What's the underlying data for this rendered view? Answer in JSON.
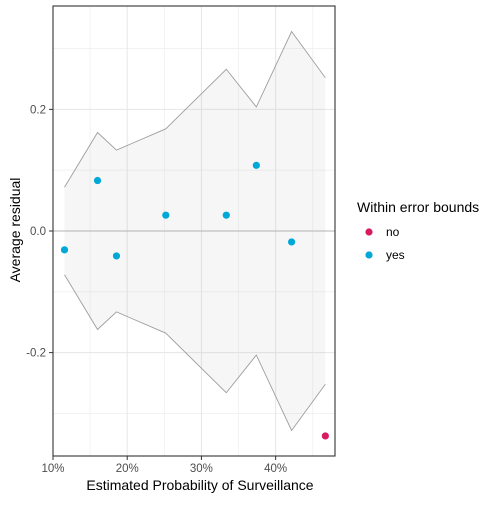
{
  "chart_data": {
    "type": "scatter",
    "title": "",
    "xlabel": "Estimated Probability of Surveillance",
    "ylabel": "Average residual",
    "xlim": [
      0.1,
      0.48
    ],
    "ylim": [
      -0.37,
      0.37
    ],
    "x_ticks": [
      0.1,
      0.2,
      0.3,
      0.4
    ],
    "x_tick_labels": [
      "10%",
      "20%",
      "30%",
      "40%"
    ],
    "y_ticks": [
      -0.2,
      0.0,
      0.2
    ],
    "y_tick_labels": [
      "-0.2",
      "0.0",
      "0.2"
    ],
    "grid": true,
    "zero_line": 0,
    "error_bounds": {
      "x": [
        0.1155,
        0.16,
        0.1855,
        0.252,
        0.3335,
        0.374,
        0.4215,
        0.467
      ],
      "upper": [
        0.072,
        0.162,
        0.133,
        0.168,
        0.266,
        0.204,
        0.328,
        0.252
      ],
      "lower": [
        -0.072,
        -0.162,
        -0.133,
        -0.168,
        -0.266,
        -0.204,
        -0.328,
        -0.252
      ]
    },
    "legend": {
      "title": "Within error bounds",
      "position": "right",
      "entries": [
        {
          "label": "no",
          "color": "#D81B60"
        },
        {
          "label": "yes",
          "color": "#00A8D8"
        }
      ]
    },
    "series": [
      {
        "name": "no",
        "color": "#D81B60",
        "points": [
          {
            "x": 0.467,
            "y": -0.337
          }
        ]
      },
      {
        "name": "yes",
        "color": "#00A8D8",
        "points": [
          {
            "x": 0.1155,
            "y": -0.031
          },
          {
            "x": 0.16,
            "y": 0.083
          },
          {
            "x": 0.1855,
            "y": -0.041
          },
          {
            "x": 0.252,
            "y": 0.026
          },
          {
            "x": 0.3335,
            "y": 0.026
          },
          {
            "x": 0.374,
            "y": 0.108
          },
          {
            "x": 0.4215,
            "y": -0.018
          }
        ]
      }
    ]
  }
}
